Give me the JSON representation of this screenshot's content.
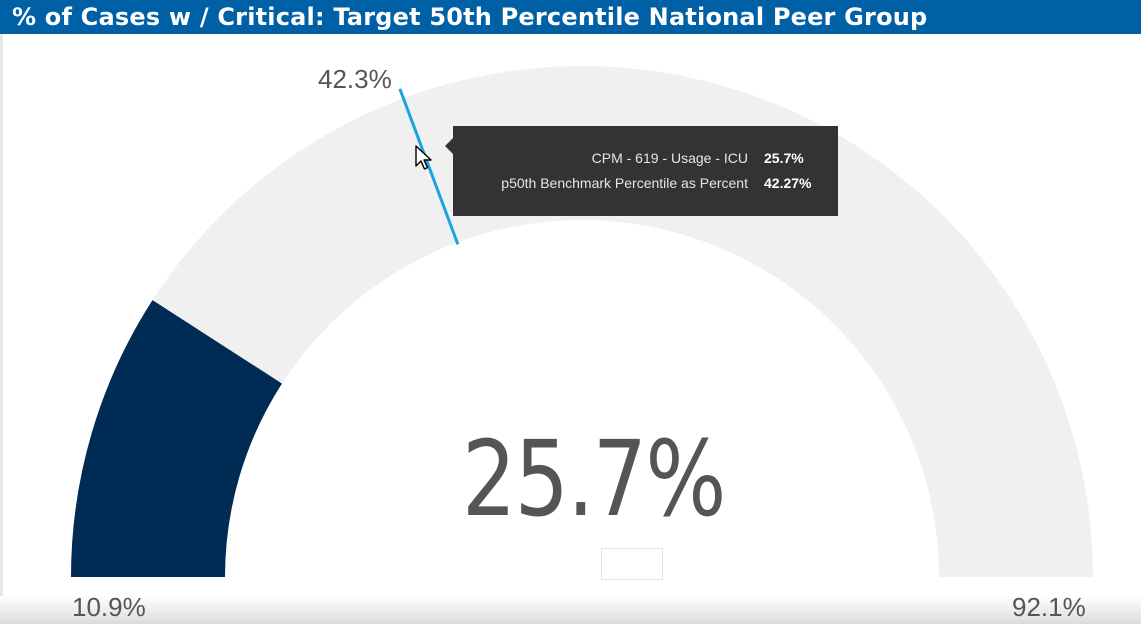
{
  "header": {
    "title": "% of Cases w / Critical: Target 50th Percentile National Peer Group"
  },
  "chart_data": {
    "type": "gauge",
    "value": 25.7,
    "value_label": "25.7%",
    "min": 10.9,
    "min_label": "10.9%",
    "max": 92.1,
    "max_label": "92.1%",
    "target": 42.27,
    "target_label": "42.3%",
    "colors": {
      "fill": "#002b55",
      "track": "#f1f0f0",
      "target": "#1aa3e0",
      "header": "#0060a6"
    }
  },
  "tooltip": {
    "rows": [
      {
        "label": "CPM - 619 - Usage - ICU",
        "value": "25.7%"
      },
      {
        "label": "p50th Benchmark Percentile as Percent",
        "value": "42.27%"
      }
    ]
  },
  "icons": {
    "cursor": "mouse-pointer-icon"
  }
}
